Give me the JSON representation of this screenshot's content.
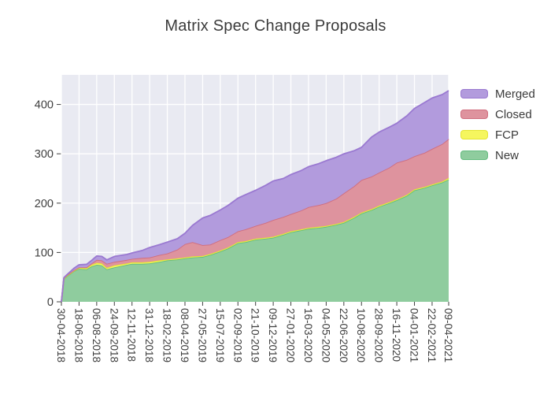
{
  "title": "Matrix Spec Change Proposals",
  "chart_data": {
    "type": "area",
    "stacked": true,
    "title": "Matrix Spec Change Proposals",
    "xlabel": "",
    "ylabel": "",
    "ylim": [
      0,
      460
    ],
    "grid": true,
    "plot_bg": "#e9eaf2",
    "grid_color": "#ffffff",
    "tick_color": "#3f3f3f",
    "y_ticks": [
      0,
      100,
      200,
      300,
      400
    ],
    "x_tick_labels": [
      "30-04-2018",
      "18-06-2018",
      "06-08-2018",
      "24-09-2018",
      "12-11-2018",
      "31-12-2018",
      "18-02-2019",
      "08-04-2019",
      "27-05-2019",
      "15-07-2019",
      "02-09-2019",
      "21-10-2019",
      "09-12-2019",
      "27-01-2020",
      "16-03-2020",
      "04-05-2020",
      "22-06-2020",
      "10-08-2020",
      "28-09-2020",
      "16-11-2020",
      "04-01-2021",
      "22-02-2021",
      "09-04-2021"
    ],
    "x": [
      "30-04-2018",
      "07-05-2018",
      "14-05-2018",
      "04-06-2018",
      "18-06-2018",
      "09-07-2018",
      "23-07-2018",
      "06-08-2018",
      "20-08-2018",
      "03-09-2018",
      "24-09-2018",
      "29-10-2018",
      "12-11-2018",
      "10-12-2018",
      "31-12-2018",
      "28-01-2019",
      "18-02-2019",
      "18-03-2019",
      "08-04-2019",
      "29-04-2019",
      "27-05-2019",
      "17-06-2019",
      "15-07-2019",
      "05-08-2019",
      "02-09-2019",
      "23-09-2019",
      "21-10-2019",
      "18-11-2019",
      "09-12-2019",
      "06-01-2020",
      "27-01-2020",
      "24-02-2020",
      "16-03-2020",
      "13-04-2020",
      "04-05-2020",
      "01-06-2020",
      "22-06-2020",
      "20-07-2020",
      "10-08-2020",
      "07-09-2020",
      "28-09-2020",
      "26-10-2020",
      "16-11-2020",
      "14-12-2020",
      "04-01-2021",
      "01-02-2021",
      "22-02-2021",
      "22-03-2021",
      "09-04-2021"
    ],
    "series": [
      {
        "name": "New",
        "fill": "#8fcc9e",
        "line": "#63bb7e",
        "values": [
          0,
          46,
          51,
          62,
          67,
          66,
          72,
          75,
          74,
          66,
          70,
          75,
          77,
          77,
          78,
          81,
          84,
          86,
          88,
          90,
          91,
          95,
          102,
          108,
          119,
          121,
          126,
          128,
          130,
          136,
          141,
          145,
          148,
          150,
          152,
          156,
          160,
          170,
          179,
          186,
          193,
          200,
          206,
          215,
          226,
          231,
          236,
          242,
          248
        ]
      },
      {
        "name": "FCP",
        "fill": "#f5f65e",
        "line": "#e4e432",
        "values": [
          0,
          1,
          1,
          1,
          2,
          2,
          3,
          4,
          4,
          3,
          4,
          3,
          3,
          3,
          3,
          3,
          2,
          2,
          2,
          2,
          2,
          2,
          2,
          2,
          2,
          2,
          2,
          2,
          2,
          2,
          2,
          2,
          2,
          2,
          2,
          2,
          2,
          2,
          2,
          2,
          2,
          2,
          2,
          2,
          2,
          2,
          2,
          2,
          3
        ]
      },
      {
        "name": "Closed",
        "fill": "#de939e",
        "line": "#d06d7e",
        "values": [
          0,
          1,
          1,
          1,
          1,
          2,
          3,
          6,
          6,
          8,
          7,
          7,
          7,
          9,
          9,
          11,
          12,
          18,
          27,
          29,
          22,
          19,
          21,
          21,
          22,
          24,
          26,
          30,
          34,
          34,
          35,
          38,
          42,
          44,
          46,
          51,
          58,
          62,
          66,
          66,
          67,
          70,
          74,
          71,
          67,
          69,
          72,
          76,
          79
        ]
      },
      {
        "name": "Merged",
        "fill": "#b29bdd",
        "line": "#9a79d1",
        "values": [
          0,
          1,
          1,
          4,
          5,
          6,
          6,
          8,
          8,
          8,
          11,
          11,
          12,
          15,
          20,
          21,
          23,
          22,
          22,
          34,
          55,
          59,
          61,
          64,
          67,
          70,
          72,
          76,
          79,
          78,
          80,
          81,
          82,
          84,
          86,
          84,
          80,
          72,
          66,
          80,
          82,
          82,
          80,
          89,
          97,
          102,
          103,
          100,
          98
        ]
      }
    ],
    "legend": {
      "position": "top-right",
      "entries": [
        "Merged",
        "Closed",
        "FCP",
        "New"
      ]
    }
  }
}
